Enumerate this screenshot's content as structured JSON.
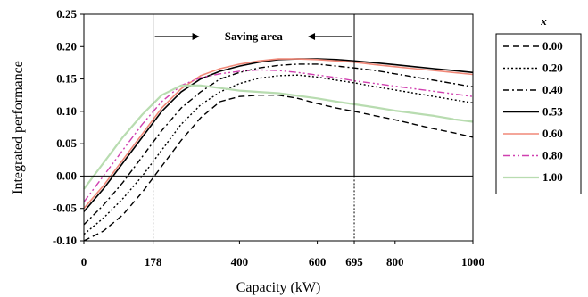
{
  "chart_data": {
    "type": "line",
    "xlabel": "Capacity (kW)",
    "ylabel": "Integrated performance",
    "xlim": [
      0,
      1000
    ],
    "ylim": [
      -0.1,
      0.25
    ],
    "x_ticks": [
      0,
      178,
      400,
      600,
      695,
      800,
      1000
    ],
    "x_tick_labels": [
      "0",
      "178",
      "400",
      "600",
      "695",
      "800",
      "1000"
    ],
    "y_ticks": [
      -0.1,
      -0.05,
      0.0,
      0.05,
      0.1,
      0.15,
      0.2,
      0.25
    ],
    "y_tick_labels": [
      "-0.10",
      "-0.05",
      "0.00",
      "0.05",
      "0.10",
      "0.15",
      "0.20",
      "0.25"
    ],
    "grid": false,
    "annotation": {
      "text": "Saving area",
      "x_start": 178,
      "x_end": 695
    },
    "legend": {
      "title": "x",
      "position": "right"
    },
    "series": [
      {
        "name": "0.00",
        "color": "#000000",
        "dash": "7,4",
        "width": 1.4,
        "x": [
          0,
          50,
          100,
          150,
          200,
          250,
          300,
          350,
          400,
          450,
          500,
          550,
          600,
          650,
          695,
          750,
          800,
          850,
          900,
          950,
          1000
        ],
        "y": [
          -0.1,
          -0.085,
          -0.06,
          -0.025,
          0.015,
          0.055,
          0.09,
          0.115,
          0.123,
          0.125,
          0.125,
          0.12,
          0.112,
          0.105,
          0.1,
          0.093,
          0.087,
          0.08,
          0.073,
          0.067,
          0.06
        ]
      },
      {
        "name": "0.20",
        "color": "#000000",
        "dash": "2,2.5",
        "width": 1.4,
        "x": [
          0,
          50,
          100,
          150,
          200,
          250,
          300,
          350,
          400,
          450,
          500,
          550,
          600,
          650,
          695,
          750,
          800,
          850,
          900,
          950,
          1000
        ],
        "y": [
          -0.09,
          -0.065,
          -0.035,
          0.0,
          0.04,
          0.08,
          0.11,
          0.13,
          0.143,
          0.151,
          0.155,
          0.156,
          0.153,
          0.148,
          0.144,
          0.138,
          0.133,
          0.128,
          0.123,
          0.118,
          0.113
        ]
      },
      {
        "name": "0.40",
        "color": "#000000",
        "dash": "7,3,2,3",
        "width": 1.4,
        "x": [
          0,
          50,
          100,
          150,
          200,
          250,
          300,
          350,
          400,
          450,
          500,
          550,
          600,
          650,
          695,
          750,
          800,
          850,
          900,
          950,
          1000
        ],
        "y": [
          -0.075,
          -0.045,
          -0.01,
          0.03,
          0.07,
          0.105,
          0.13,
          0.15,
          0.16,
          0.167,
          0.171,
          0.173,
          0.173,
          0.17,
          0.167,
          0.163,
          0.158,
          0.153,
          0.148,
          0.143,
          0.138
        ]
      },
      {
        "name": "0.53",
        "color": "#000000",
        "dash": "",
        "width": 1.6,
        "x": [
          0,
          50,
          100,
          150,
          200,
          250,
          300,
          350,
          400,
          450,
          500,
          550,
          600,
          650,
          695,
          750,
          800,
          850,
          900,
          950,
          1000
        ],
        "y": [
          -0.055,
          -0.02,
          0.02,
          0.06,
          0.1,
          0.13,
          0.15,
          0.162,
          0.17,
          0.176,
          0.18,
          0.181,
          0.181,
          0.18,
          0.178,
          0.175,
          0.172,
          0.169,
          0.166,
          0.163,
          0.16
        ]
      },
      {
        "name": "0.60",
        "color": "#f08878",
        "dash": "",
        "width": 1.6,
        "x": [
          0,
          50,
          100,
          150,
          200,
          250,
          300,
          350,
          400,
          450,
          500,
          550,
          600,
          650,
          695,
          750,
          800,
          850,
          900,
          950,
          1000
        ],
        "y": [
          -0.05,
          -0.015,
          0.025,
          0.065,
          0.105,
          0.135,
          0.155,
          0.166,
          0.173,
          0.178,
          0.181,
          0.181,
          0.18,
          0.178,
          0.176,
          0.172,
          0.169,
          0.166,
          0.163,
          0.16,
          0.157
        ]
      },
      {
        "name": "0.80",
        "color": "#d040b0",
        "dash": "8,3,2,3,2,3",
        "width": 1.4,
        "x": [
          0,
          50,
          100,
          150,
          200,
          250,
          300,
          350,
          400,
          450,
          500,
          550,
          600,
          650,
          695,
          750,
          800,
          850,
          900,
          950,
          1000
        ],
        "y": [
          -0.04,
          0.0,
          0.04,
          0.08,
          0.115,
          0.14,
          0.152,
          0.158,
          0.162,
          0.164,
          0.163,
          0.16,
          0.156,
          0.152,
          0.147,
          0.143,
          0.139,
          0.135,
          0.131,
          0.127,
          0.123
        ]
      },
      {
        "name": "1.00",
        "color": "#b8dcb0",
        "dash": "",
        "width": 2.2,
        "x": [
          0,
          50,
          100,
          150,
          200,
          250,
          300,
          350,
          400,
          450,
          500,
          550,
          600,
          650,
          695,
          750,
          800,
          850,
          900,
          950,
          1000
        ],
        "y": [
          -0.02,
          0.02,
          0.06,
          0.095,
          0.125,
          0.14,
          0.14,
          0.136,
          0.132,
          0.13,
          0.128,
          0.124,
          0.12,
          0.115,
          0.111,
          0.106,
          0.101,
          0.097,
          0.093,
          0.088,
          0.084
        ]
      }
    ]
  }
}
